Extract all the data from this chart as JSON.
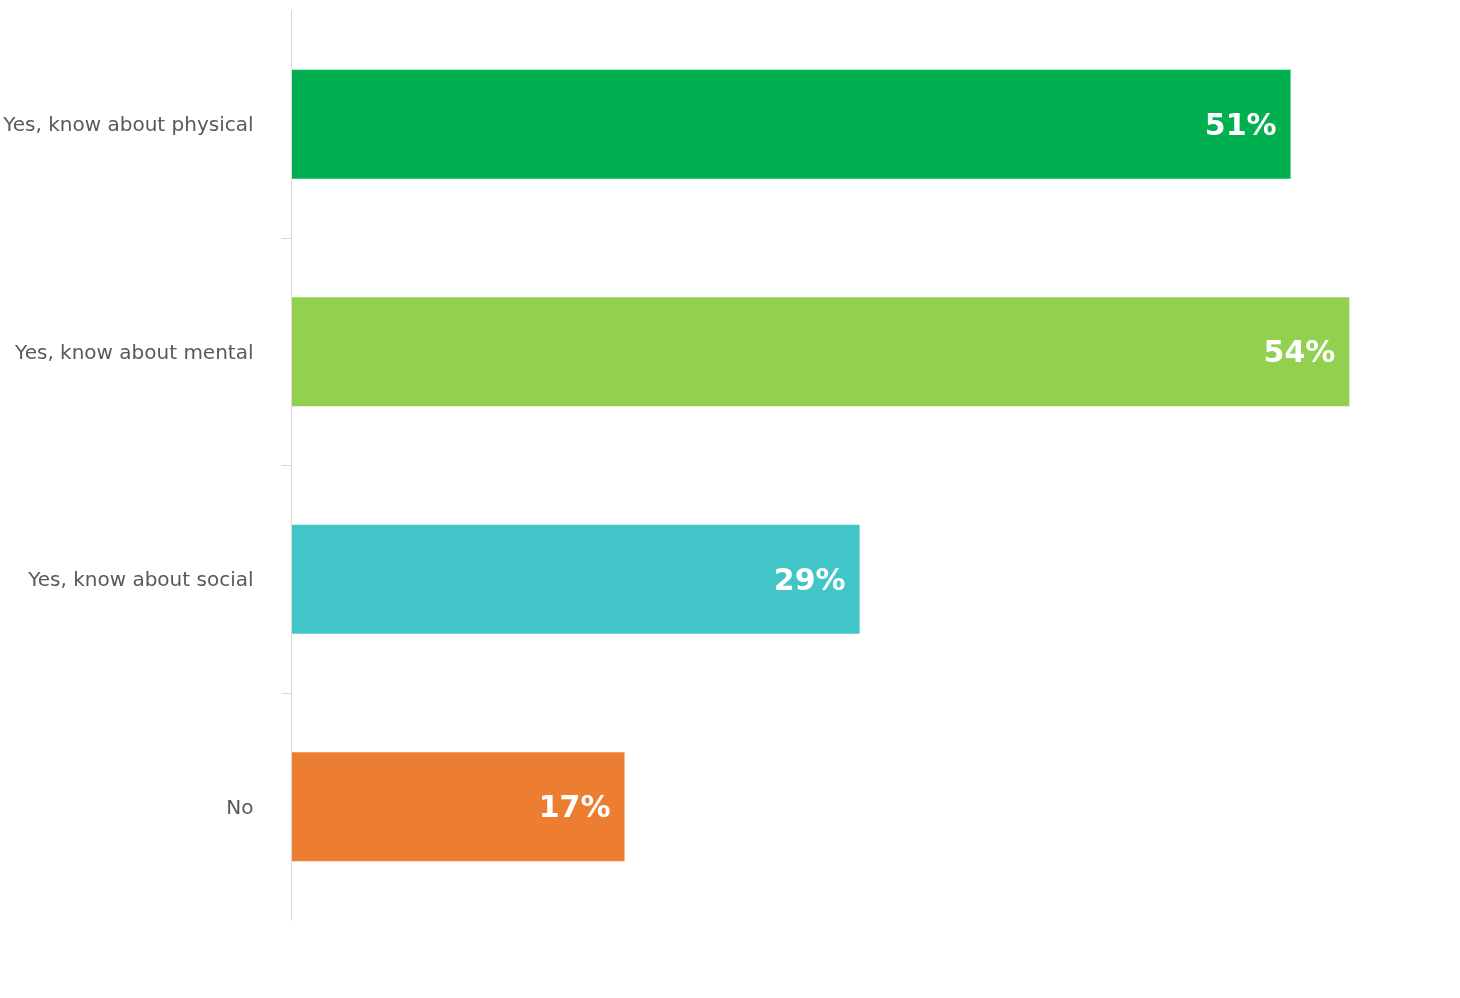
{
  "chart_data": {
    "type": "bar",
    "orientation": "horizontal",
    "categories": [
      "Yes, know about physical",
      "Yes, know about mental",
      "Yes, know about social",
      "No"
    ],
    "values": [
      51,
      54,
      29,
      17
    ],
    "colors": [
      "#00b050",
      "#92d050",
      "#42c5c8",
      "#ed7d31"
    ],
    "value_labels": [
      "51%",
      "54%",
      "29%",
      "17%"
    ],
    "grid": false
  }
}
